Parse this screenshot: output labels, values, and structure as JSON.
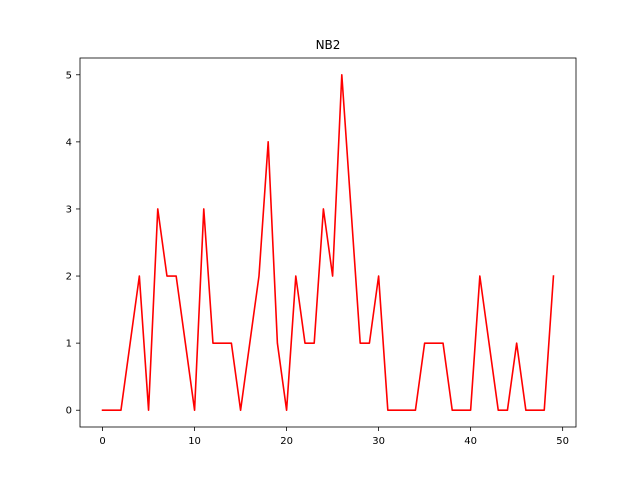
{
  "chart_data": {
    "type": "line",
    "title": "NB2",
    "xlabel": "",
    "ylabel": "",
    "xlim": [
      -2.45,
      51.45
    ],
    "ylim": [
      -0.25,
      5.25
    ],
    "xticks": [
      0,
      10,
      20,
      30,
      40,
      50
    ],
    "yticks": [
      0,
      1,
      2,
      3,
      4,
      5
    ],
    "grid": false,
    "legend": "none",
    "series": [
      {
        "color": "#ff0000",
        "x": [
          0,
          1,
          2,
          3,
          4,
          5,
          6,
          7,
          8,
          9,
          10,
          11,
          12,
          13,
          14,
          15,
          16,
          17,
          18,
          19,
          20,
          21,
          22,
          23,
          24,
          25,
          26,
          27,
          28,
          29,
          30,
          31,
          32,
          33,
          34,
          35,
          36,
          37,
          38,
          39,
          40,
          41,
          42,
          43,
          44,
          45,
          46,
          47,
          48,
          49
        ],
        "values": [
          0,
          0,
          0,
          1,
          2,
          0,
          3,
          2,
          2,
          1,
          0,
          3,
          1,
          1,
          1,
          0,
          1,
          2,
          4,
          1,
          0,
          2,
          1,
          1,
          3,
          2,
          5,
          3,
          1,
          1,
          2,
          0,
          0,
          0,
          0,
          1,
          1,
          1,
          0,
          0,
          0,
          2,
          1,
          0,
          0,
          1,
          0,
          0,
          0,
          2
        ]
      }
    ]
  }
}
